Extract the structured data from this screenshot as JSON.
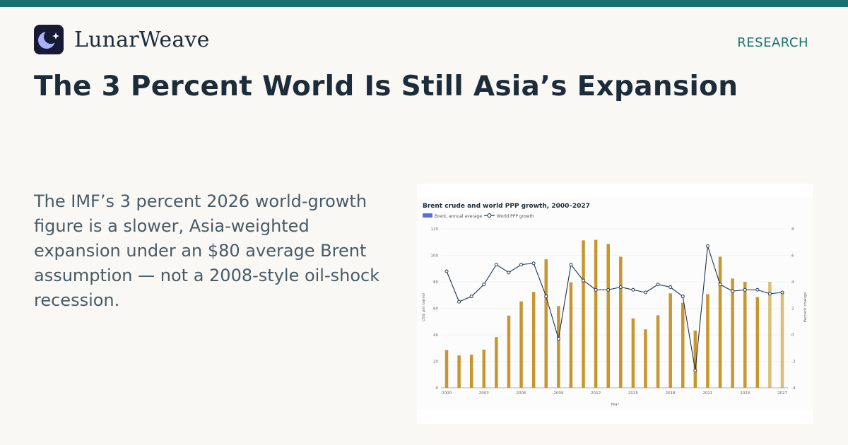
{
  "header": {
    "brand_name": "LunarWeave",
    "section": "RESEARCH",
    "logo_icon": "crescent-moon-star-icon"
  },
  "article": {
    "headline": "The 3 Percent World Is Still Asia’s Expansion",
    "summary": "The IMF’s 3 percent 2026 world-growth figure is a slower, Asia-weighted expansion under an $80 average Brent assumption — not a 2008-style oil-shock recession."
  },
  "colors": {
    "accent": "#17706e",
    "bar": "#c8962f",
    "bar_projection": "#dcbd77",
    "line": "#1b3350",
    "legend_bar_swatch": "#5572d9"
  },
  "chart_data": {
    "type": "bar",
    "title": "Brent crude and world PPP growth, 2000–2027",
    "xlabel": "Year",
    "ylabel": "US$ per barrel",
    "y2label": "Percent change",
    "ylim": [
      0,
      120
    ],
    "y2lim": [
      -4,
      8
    ],
    "yticks": [
      0,
      20,
      40,
      60,
      80,
      100,
      120
    ],
    "y2ticks": [
      -4,
      -2,
      0,
      2,
      4,
      6,
      8
    ],
    "xticks": [
      "2000",
      "2003",
      "2006",
      "2009",
      "2012",
      "2015",
      "2018",
      "2021",
      "2024",
      "2027"
    ],
    "grid": true,
    "legend_position": "top-left",
    "categories": [
      "2000",
      "2001",
      "2002",
      "2003",
      "2004",
      "2005",
      "2006",
      "2007",
      "2008",
      "2009",
      "2010",
      "2011",
      "2012",
      "2013",
      "2014",
      "2015",
      "2016",
      "2017",
      "2018",
      "2019",
      "2020",
      "2021",
      "2022",
      "2023",
      "2024",
      "2025",
      "2026",
      "2027"
    ],
    "projection_start": "2026",
    "series": [
      {
        "name": "Brent, annual average",
        "type": "bar",
        "axis": "left",
        "values": [
          28.5,
          24.4,
          25.0,
          28.8,
          38.3,
          54.5,
          65.2,
          72.4,
          97.0,
          61.7,
          79.6,
          111.3,
          111.7,
          108.6,
          99.0,
          52.4,
          44.1,
          54.7,
          71.3,
          64.2,
          43.2,
          70.7,
          99.0,
          82.5,
          80.0,
          68.5,
          80.0,
          72.0
        ]
      },
      {
        "name": "World PPP growth",
        "type": "line",
        "axis": "right",
        "values": [
          4.8,
          2.5,
          2.9,
          3.8,
          5.3,
          4.7,
          5.3,
          5.4,
          2.9,
          -0.3,
          5.3,
          4.1,
          3.4,
          3.4,
          3.6,
          3.4,
          3.2,
          3.8,
          3.6,
          2.9,
          -2.7,
          6.7,
          3.8,
          3.3,
          3.4,
          3.4,
          3.1,
          3.2
        ]
      }
    ]
  }
}
